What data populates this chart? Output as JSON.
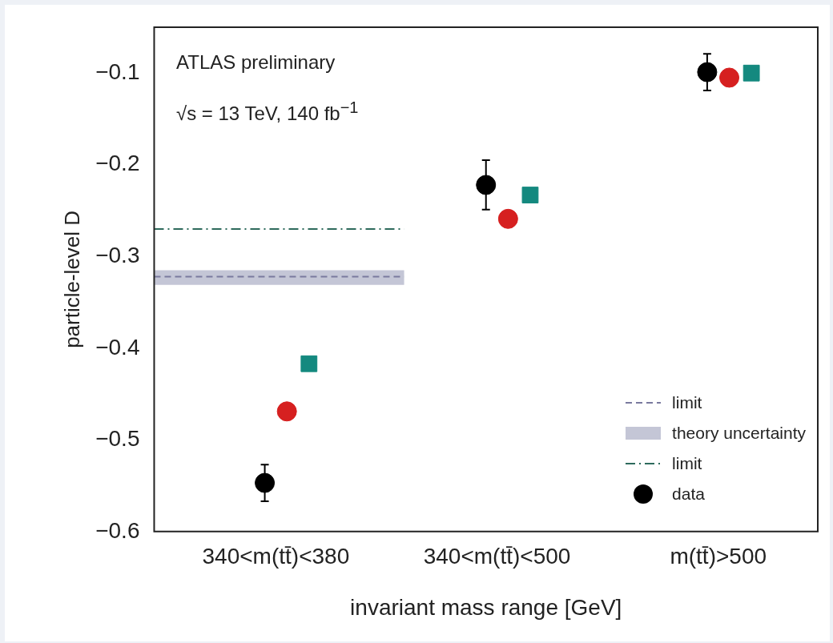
{
  "chart_data": {
    "type": "scatter",
    "xlabel": "invariant mass range [GeV]",
    "ylabel": "particle-level D",
    "categories": [
      "340<m(tt̄)<380",
      "340<m(tt̄)<500",
      "m(tt̄)>500"
    ],
    "ylim": [
      -0.6,
      -0.05
    ],
    "yticks": [
      -0.6,
      -0.5,
      -0.4,
      -0.3,
      -0.2,
      -0.1
    ],
    "series": [
      {
        "name": "data",
        "color": "#000000",
        "marker": "circle",
        "values": [
          -0.547,
          -0.222,
          -0.099
        ],
        "errors": [
          0.02,
          0.027,
          0.02
        ]
      },
      {
        "color": "#d62020",
        "marker": "circle",
        "values": [
          -0.469,
          -0.259,
          -0.105
        ]
      },
      {
        "color": "#14897f",
        "marker": "square",
        "values": [
          -0.417,
          -0.233,
          -0.1
        ]
      }
    ],
    "ref_lines": [
      {
        "axis": "y",
        "value": -0.322,
        "label": "limit",
        "color": "#7a7a9e",
        "line_style": "dashed"
      },
      {
        "axis": "y",
        "value": -0.27,
        "label": "limit",
        "color": "#2e6a5c",
        "line_style": "dashdot"
      }
    ],
    "bands": [
      {
        "axis": "y",
        "from": -0.331,
        "to": -0.315,
        "label": "theory uncertainty",
        "color": "#c4c6d6"
      }
    ],
    "annotations": [
      "ATLAS preliminary",
      "√s = 13 TeV, 140 fb$^{−1}$"
    ],
    "legend": "bottom right",
    "grid": false
  }
}
